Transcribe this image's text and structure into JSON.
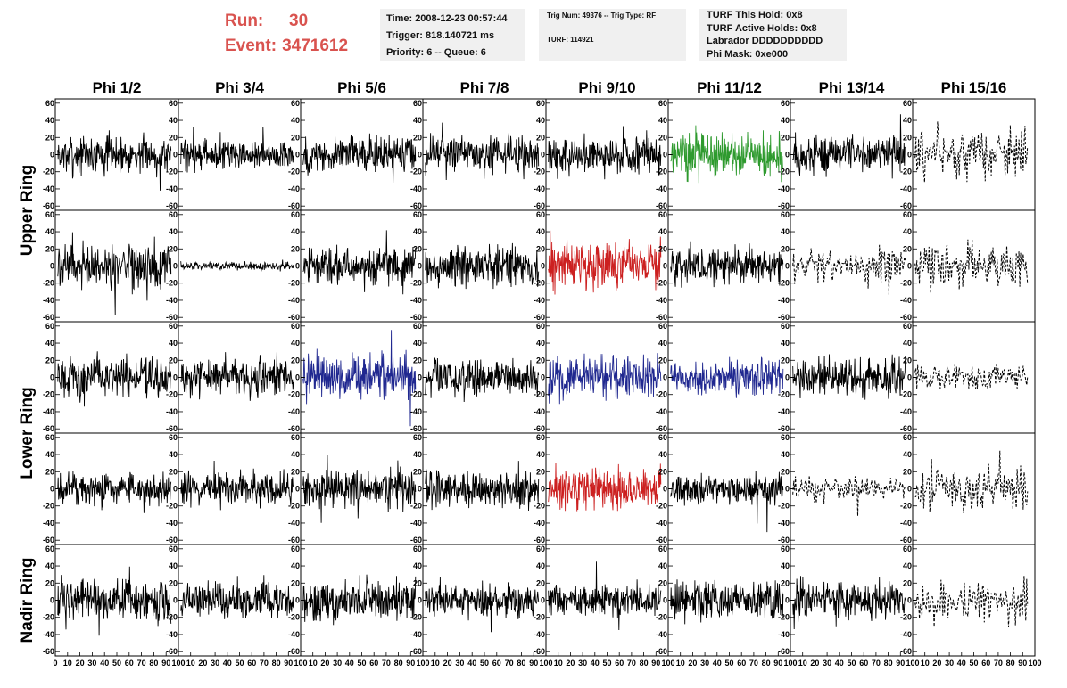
{
  "header": {
    "run_label": "Run:",
    "run_value": "30",
    "event_label": "Event:",
    "event_value": "3471612",
    "info1": [
      "Time: 2008-12-23 00:57:44",
      "Trigger: 818.140721 ms",
      "Priority: 6 -- Queue: 6"
    ],
    "info2": [
      "Trig Num: 49376 -- Trig Type: RF",
      "TURF: 114921"
    ],
    "info3": [
      "TURF This Hold: 0x8",
      "TURF Active Holds: 0x8",
      "Labrador DDDDDDDDDD",
      "Phi Mask: 0xe000"
    ]
  },
  "chart_data": {
    "type": "line",
    "title": "",
    "columns": [
      "Phi 1/2",
      "Phi 3/4",
      "Phi 5/6",
      "Phi 7/8",
      "Phi 9/10",
      "Phi 11/12",
      "Phi 13/14",
      "Phi 15/16"
    ],
    "rows": [
      "Upper Ring",
      "Upper Ring",
      "Lower Ring",
      "Lower Ring",
      "Nadir Ring"
    ],
    "row_labels": [
      "Upper Ring",
      "Lower Ring",
      "Nadir Ring"
    ],
    "xlim": [
      0,
      100
    ],
    "ylim": [
      -65,
      65
    ],
    "y_ticks": [
      -60,
      -40,
      -20,
      0,
      20,
      40,
      60
    ],
    "x_ticks": [
      0,
      10,
      20,
      30,
      40,
      50,
      60,
      70,
      80,
      90,
      100
    ],
    "colors": {
      "default": "#000000",
      "green": "#2e9a2e",
      "red": "#cc2020",
      "blue": "#202890"
    },
    "panels": [
      {
        "row": 0,
        "col": 5,
        "color": "green",
        "style": "solid"
      },
      {
        "row": 1,
        "col": 4,
        "color": "red",
        "style": "solid"
      },
      {
        "row": 2,
        "col": 2,
        "color": "blue",
        "style": "solid"
      },
      {
        "row": 2,
        "col": 4,
        "color": "blue",
        "style": "solid"
      },
      {
        "row": 2,
        "col": 5,
        "color": "blue",
        "style": "solid"
      },
      {
        "row": 3,
        "col": 4,
        "color": "red",
        "style": "solid"
      }
    ],
    "dashed_panels": [
      [
        0,
        7
      ],
      [
        1,
        6
      ],
      [
        1,
        7
      ],
      [
        2,
        7
      ],
      [
        3,
        6
      ],
      [
        3,
        7
      ],
      [
        4,
        7
      ]
    ],
    "amplitudes": [
      [
        15,
        12,
        15,
        14,
        16,
        18,
        15,
        20
      ],
      [
        18,
        3,
        15,
        16,
        18,
        15,
        15,
        18
      ],
      [
        16,
        15,
        18,
        15,
        17,
        14,
        15,
        12
      ],
      [
        13,
        13,
        15,
        15,
        17,
        12,
        10,
        18
      ],
      [
        17,
        14,
        16,
        14,
        13,
        16,
        15,
        17
      ]
    ]
  }
}
